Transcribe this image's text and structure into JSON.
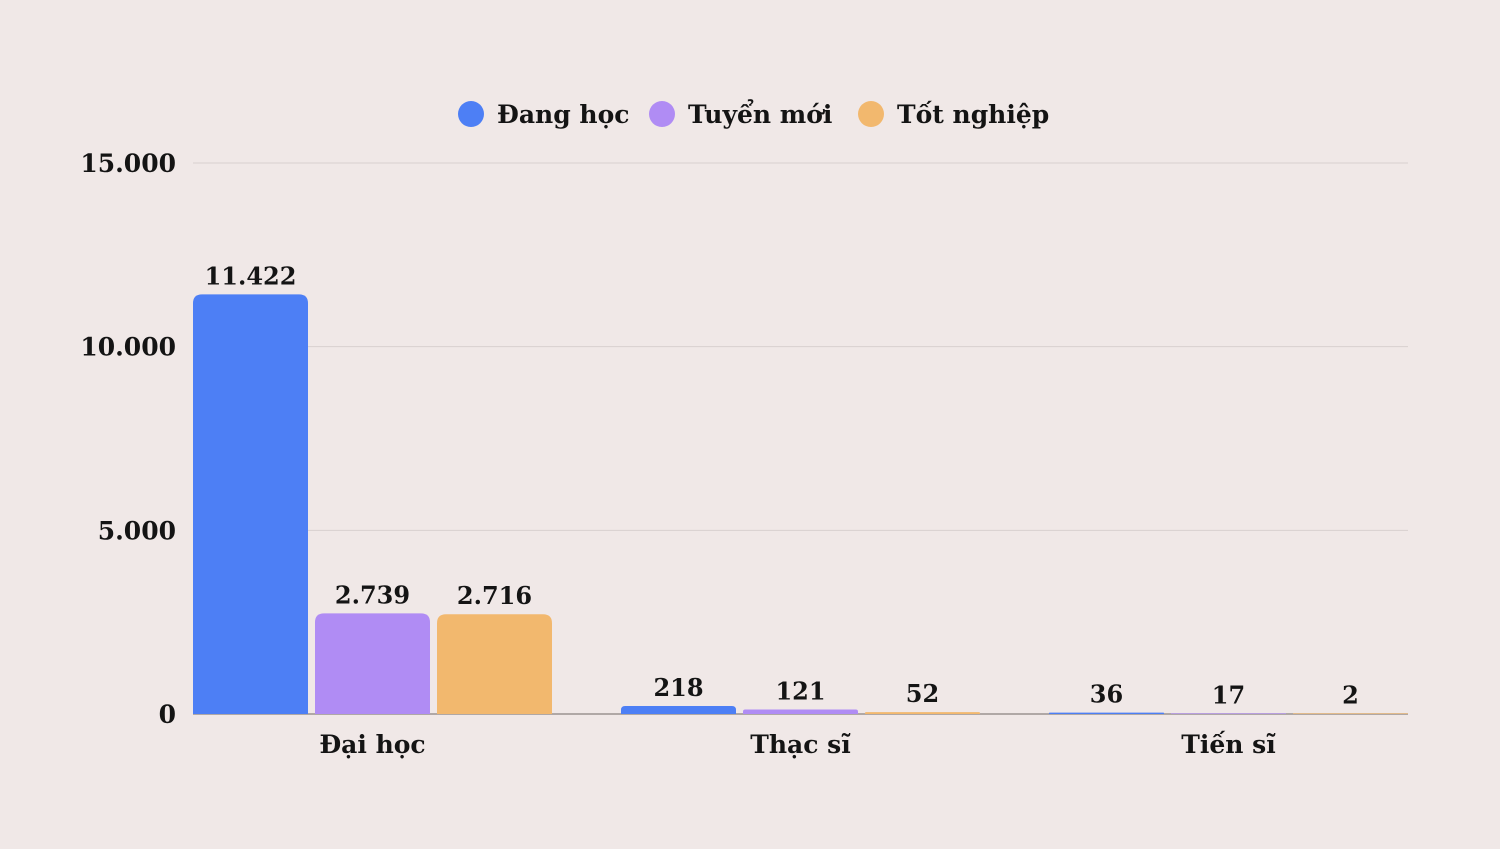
{
  "chart_data": {
    "type": "bar",
    "categories": [
      "Đại học",
      "Thạc sĩ",
      "Tiến sĩ"
    ],
    "series": [
      {
        "name": "Đang học",
        "values": [
          11422,
          218,
          36
        ],
        "labels": [
          "11.422",
          "218",
          "36"
        ],
        "color": "#4d7ff5"
      },
      {
        "name": "Tuyển mới",
        "values": [
          2739,
          121,
          17
        ],
        "labels": [
          "2.739",
          "121",
          "17"
        ],
        "color": "#b08cf4"
      },
      {
        "name": "Tốt nghiệp",
        "values": [
          2716,
          52,
          2
        ],
        "labels": [
          "2.716",
          "52",
          "2"
        ],
        "color": "#f2b86e"
      }
    ],
    "yticks": [
      0,
      5000,
      10000,
      15000
    ],
    "ytick_labels": [
      "0",
      "5.000",
      "10.000",
      "15.000"
    ],
    "ylim": [
      0,
      15000
    ],
    "grid": true,
    "legend_position": "top-center",
    "gridline_color": "#d8d0cf",
    "axis_color": "#9a9291"
  }
}
